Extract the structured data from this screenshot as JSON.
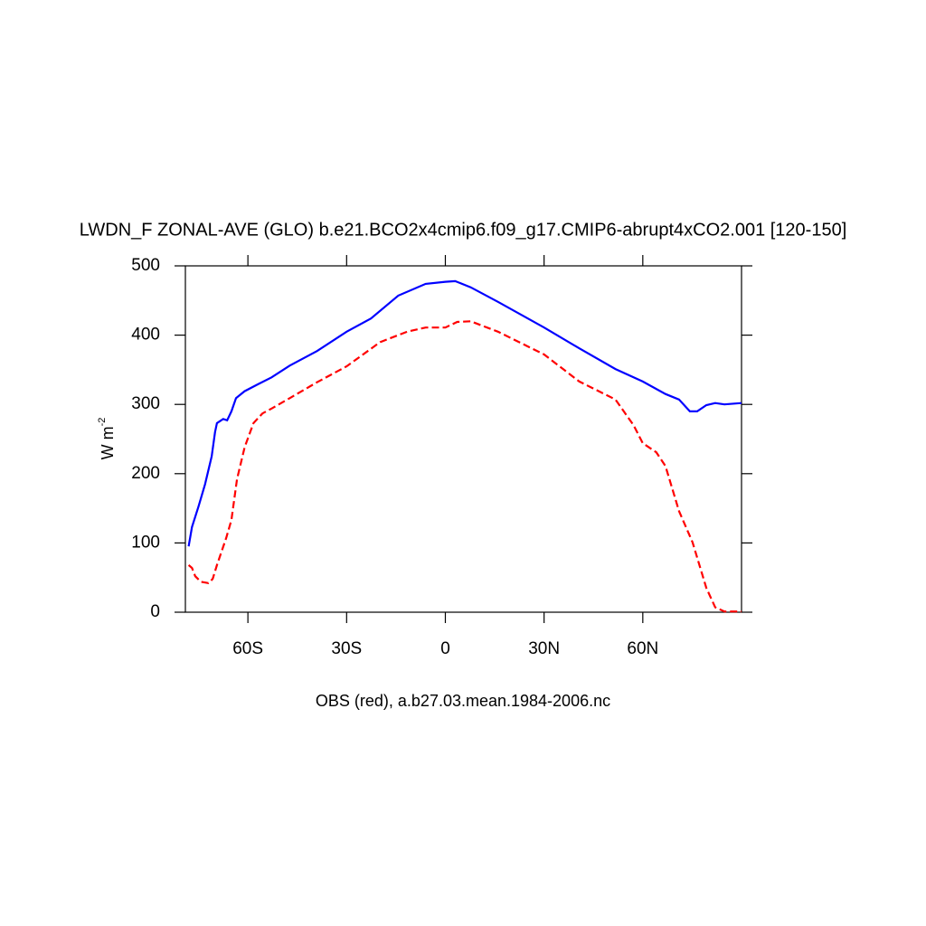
{
  "chart_data": {
    "type": "line",
    "title": "LWDN_F ZONAL-AVE (GLO) b.e21.BCO2x4cmip6.f09_g17.CMIP6-abrupt4xCO2.001 [120-150]",
    "footer": "OBS (red), a.b27.03.mean.1984-2006.nc",
    "ylabel": {
      "base": "W m",
      "sup": "-2"
    },
    "xlim": [
      -79,
      90
    ],
    "ylim": [
      0,
      500
    ],
    "xticks": [
      {
        "value": -60,
        "label": "60S"
      },
      {
        "value": -30,
        "label": "30S"
      },
      0,
      {
        "value": 30,
        "label": "30N"
      },
      {
        "value": 60,
        "label": "60N"
      }
    ],
    "yticks": [
      0,
      100,
      200,
      300,
      400,
      500
    ],
    "series": [
      {
        "color": "#0000ff",
        "dash": false,
        "x": [
          -78,
          -77,
          -75,
          -73,
          -71,
          -70,
          -69.4,
          -67.5,
          -66.3,
          -65,
          -63.6,
          -61,
          -57,
          -52.8,
          -47.3,
          -39,
          -30,
          -22.6,
          -14.3,
          -6,
          0,
          3,
          7.7,
          16,
          30,
          40.7,
          51.7,
          60,
          66.9,
          71,
          74.3,
          76.5,
          79.3,
          82,
          84.8,
          90
        ],
        "values": [
          95,
          123,
          153,
          185,
          225,
          260,
          273,
          279,
          277,
          290,
          309,
          319,
          329,
          339,
          356,
          377,
          405,
          424,
          457,
          474,
          477,
          478,
          469,
          448,
          411,
          381,
          351,
          333,
          315,
          307,
          290,
          290,
          299,
          302,
          300,
          302
        ]
      },
      {
        "color": "#ff0000",
        "dash": true,
        "x": [
          -78,
          -77,
          -76,
          -74.3,
          -72,
          -70.7,
          -69.4,
          -66.6,
          -65,
          -63.3,
          -61,
          -58.3,
          -55.6,
          -52.8,
          -47.3,
          -39,
          -30,
          -19.8,
          -11.6,
          -6,
          0,
          3.6,
          7.7,
          16,
          30,
          40.7,
          51.7,
          57.2,
          60,
          64.1,
          66.9,
          71,
          75.1,
          79.3,
          82,
          84.8,
          90
        ],
        "values": [
          68,
          64,
          52,
          44,
          42,
          48,
          68,
          107,
          133,
          192,
          238,
          273,
          287,
          294,
          309,
          332,
          355,
          390,
          405,
          411,
          411,
          419,
          420,
          405,
          372,
          333,
          307,
          270,
          244,
          231,
          211,
          146,
          101,
          35,
          7,
          1,
          1
        ]
      }
    ]
  }
}
